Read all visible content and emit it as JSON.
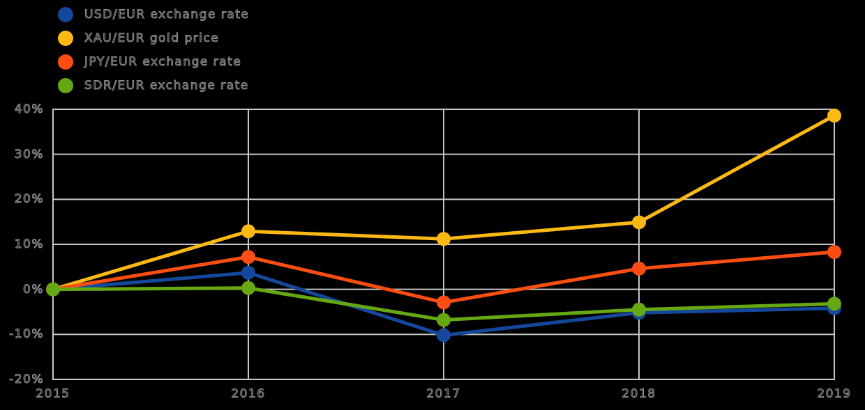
{
  "background_color": "#000000",
  "chart_data": {
    "type": "line",
    "categories": [
      "2015",
      "2016",
      "2017",
      "2018",
      "2019"
    ],
    "series": [
      {
        "name": "USD/EUR exchange rate",
        "color": "#15489C",
        "values": [
          0,
          3.7,
          -10.2,
          -5.2,
          -4.2
        ]
      },
      {
        "name": "XAU/EUR gold price",
        "color": "#FCB813",
        "values": [
          0,
          12.9,
          11.2,
          14.9,
          38.6
        ]
      },
      {
        "name": "JPY/EUR exchange rate",
        "color": "#FC4E12",
        "values": [
          0,
          7.2,
          -2.9,
          4.6,
          8.3
        ]
      },
      {
        "name": "SDR/EUR exchange rate",
        "color": "#65A812",
        "values": [
          0,
          0.3,
          -6.8,
          -4.5,
          -3.2
        ]
      }
    ],
    "ylim": [
      -20,
      40
    ],
    "y_ticks": [
      40,
      30,
      20,
      10,
      0,
      -10,
      -20
    ],
    "y_tick_labels": [
      "40%",
      "30%",
      "20%",
      "10%",
      "0%",
      "-10%",
      "-20%"
    ],
    "grid": "on",
    "gridline_color": "#C6C6C6",
    "legend_position": "top-left",
    "line_width": 5,
    "marker_radius": 10
  }
}
